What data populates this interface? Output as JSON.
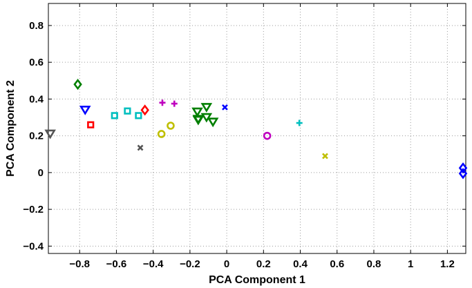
{
  "chart_data": {
    "type": "scatter",
    "xlabel": "PCA Component 1",
    "ylabel": "PCA Component 2",
    "xlim": [
      -0.97,
      1.3
    ],
    "ylim": [
      -0.44,
      0.92
    ],
    "grid": true,
    "grid_style": "dotted",
    "xticks": [
      -0.8,
      -0.6,
      -0.4,
      -0.2,
      0,
      0.2,
      0.4,
      0.6,
      0.8,
      1,
      1.2
    ],
    "xtick_labels": [
      "−0.8",
      "−0.6",
      "−0.4",
      "−0.2",
      "0",
      "0.2",
      "0.4",
      "0.6",
      "0.8",
      "1",
      "1.2"
    ],
    "yticks": [
      -0.4,
      -0.2,
      0,
      0.2,
      0.4,
      0.6,
      0.8
    ],
    "ytick_labels": [
      "−0.4",
      "−0.2",
      "0",
      "0.2",
      "0.4",
      "0.6",
      "0.8"
    ],
    "points": [
      {
        "x": -0.96,
        "y": 0.21,
        "marker": "triangle-down",
        "color": "#555555"
      },
      {
        "x": -0.81,
        "y": 0.48,
        "marker": "diamond",
        "color": "#007f00"
      },
      {
        "x": -0.77,
        "y": 0.34,
        "marker": "triangle-down",
        "color": "#0000ff"
      },
      {
        "x": -0.74,
        "y": 0.26,
        "marker": "square",
        "color": "#ff0000"
      },
      {
        "x": -0.61,
        "y": 0.31,
        "marker": "square",
        "color": "#00bfbf"
      },
      {
        "x": -0.54,
        "y": 0.335,
        "marker": "square",
        "color": "#00bfbf"
      },
      {
        "x": -0.48,
        "y": 0.31,
        "marker": "square",
        "color": "#00bfbf"
      },
      {
        "x": -0.445,
        "y": 0.34,
        "marker": "diamond",
        "color": "#ff0000"
      },
      {
        "x": -0.47,
        "y": 0.135,
        "marker": "x",
        "color": "#555555"
      },
      {
        "x": -0.355,
        "y": 0.21,
        "marker": "circle",
        "color": "#bfbf00"
      },
      {
        "x": -0.305,
        "y": 0.255,
        "marker": "circle",
        "color": "#bfbf00"
      },
      {
        "x": -0.35,
        "y": 0.38,
        "marker": "plus",
        "color": "#bf00bf"
      },
      {
        "x": -0.285,
        "y": 0.375,
        "marker": "plus",
        "color": "#bf00bf"
      },
      {
        "x": -0.16,
        "y": 0.33,
        "marker": "triangle-down",
        "color": "#007f00"
      },
      {
        "x": -0.155,
        "y": 0.29,
        "marker": "triangle-down",
        "color": "#007f00"
      },
      {
        "x": -0.11,
        "y": 0.3,
        "marker": "triangle-down",
        "color": "#007f00"
      },
      {
        "x": -0.11,
        "y": 0.355,
        "marker": "triangle-down",
        "color": "#007f00"
      },
      {
        "x": -0.075,
        "y": 0.275,
        "marker": "triangle-down",
        "color": "#007f00"
      },
      {
        "x": -0.155,
        "y": 0.285,
        "marker": "triangle-down",
        "color": "#007f00"
      },
      {
        "x": -0.01,
        "y": 0.355,
        "marker": "x",
        "color": "#0000ff"
      },
      {
        "x": 0.22,
        "y": 0.2,
        "marker": "circle",
        "color": "#bf00bf"
      },
      {
        "x": 0.395,
        "y": 0.27,
        "marker": "plus",
        "color": "#00bfbf"
      },
      {
        "x": 0.535,
        "y": 0.09,
        "marker": "x",
        "color": "#bfbf00"
      },
      {
        "x": 1.285,
        "y": 0.025,
        "marker": "diamond",
        "color": "#0000ff"
      },
      {
        "x": 1.285,
        "y": -0.005,
        "marker": "diamond",
        "color": "#0000ff"
      }
    ]
  }
}
